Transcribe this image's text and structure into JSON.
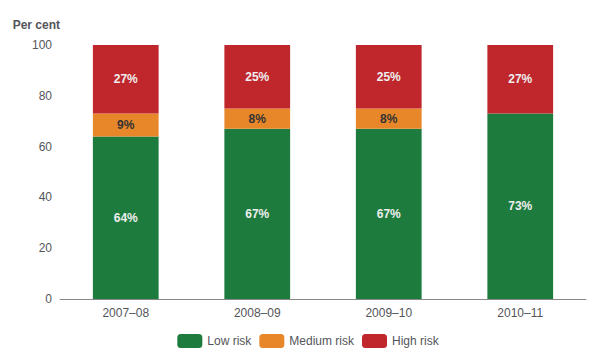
{
  "chart_data": {
    "type": "bar",
    "stacked": true,
    "data_labels": true,
    "grid": false,
    "legend": "bottom",
    "ylabel": "Per cent",
    "categories": [
      "2007–08",
      "2008–09",
      "2009–10",
      "2010–11"
    ],
    "series": [
      {
        "name": "Low risk",
        "color": "#1e7b3e",
        "values": [
          64,
          67,
          67,
          73
        ],
        "value_labels": [
          "64%",
          "67%",
          "67%",
          "73%"
        ]
      },
      {
        "name": "Medium risk",
        "color": "#e8872a",
        "values": [
          9,
          8,
          8,
          0
        ],
        "value_labels": [
          "9%",
          "8%",
          "8%",
          null
        ]
      },
      {
        "name": "High risk",
        "color": "#c0272d",
        "values": [
          27,
          25,
          25,
          27
        ],
        "value_labels": [
          "27%",
          "25%",
          "25%",
          "27%"
        ]
      }
    ],
    "ylim": [
      0,
      100
    ],
    "yticks": [
      0,
      20,
      40,
      60,
      80,
      100
    ]
  }
}
